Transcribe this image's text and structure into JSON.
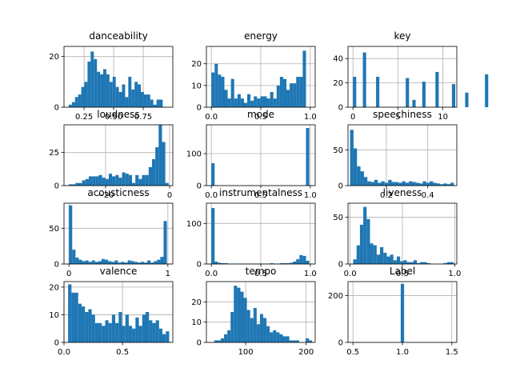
{
  "colors": {
    "bar": "#1f77b4",
    "grid": "#b0b0b0",
    "axis": "#000000"
  },
  "chart_data": [
    {
      "type": "bar",
      "title": "danceability",
      "grid": true,
      "xlim": [
        0.08,
        1.0
      ],
      "ylim": [
        0,
        24
      ],
      "xticks": [
        {
          "v": 0.25,
          "label": "0.25"
        },
        {
          "v": 0.5,
          "label": "0.50"
        },
        {
          "v": 0.75,
          "label": "0.75"
        }
      ],
      "yticks": [
        {
          "v": 0,
          "label": "0"
        },
        {
          "v": 20,
          "label": "20"
        }
      ],
      "bins_start": 0.12,
      "bin_width": 0.0265,
      "values": [
        1,
        2,
        4,
        5,
        8,
        10,
        18,
        22,
        19,
        14,
        13,
        15,
        13,
        10,
        12,
        8,
        6,
        9,
        4,
        12,
        7,
        10,
        9,
        6,
        5,
        5,
        3,
        1,
        3,
        3
      ]
    },
    {
      "type": "bar",
      "title": "energy",
      "grid": true,
      "xlim": [
        -0.05,
        1.05
      ],
      "ylim": [
        0,
        28
      ],
      "xticks": [
        {
          "v": 0,
          "label": "0.0"
        },
        {
          "v": 0.5,
          "label": "0.5"
        },
        {
          "v": 1,
          "label": "1.0"
        }
      ],
      "yticks": [
        {
          "v": 0,
          "label": "0"
        },
        {
          "v": 10,
          "label": "10"
        },
        {
          "v": 20,
          "label": "20"
        }
      ],
      "bins_start": 0.0,
      "bin_width": 0.033,
      "values": [
        16,
        20,
        15,
        14,
        8,
        4,
        13,
        4,
        6,
        4,
        2,
        6,
        3,
        5,
        4,
        5,
        5,
        4,
        7,
        4,
        10,
        14,
        13,
        8,
        11,
        11,
        14,
        14,
        26,
        0
      ]
    },
    {
      "type": "bar",
      "title": "key",
      "grid": true,
      "xlim": [
        -0.55,
        11.55
      ],
      "ylim": [
        0,
        50
      ],
      "xticks": [
        {
          "v": 0,
          "label": "0"
        },
        {
          "v": 5,
          "label": "5"
        },
        {
          "v": 10,
          "label": "10"
        }
      ],
      "yticks": [
        {
          "v": 0,
          "label": "0"
        },
        {
          "v": 20,
          "label": "20"
        },
        {
          "v": 40,
          "label": "40"
        }
      ],
      "bins_start": 0.0,
      "bin_width": 0.367,
      "values": [
        25,
        0,
        0,
        45,
        0,
        0,
        0,
        25,
        0,
        0,
        0,
        0,
        0,
        0,
        0,
        0,
        24,
        0,
        6,
        0,
        0,
        21,
        0,
        0,
        0,
        29,
        0,
        0,
        0,
        0,
        19,
        0,
        0,
        0,
        12,
        0,
        0,
        0,
        0,
        0,
        27
      ]
    },
    {
      "type": "bar",
      "title": "loudness",
      "grid": true,
      "xlim": [
        -33,
        1
      ],
      "ylim": [
        0,
        46
      ],
      "xticks": [
        {
          "v": -20,
          "label": "−20"
        },
        {
          "v": 0,
          "label": "0"
        }
      ],
      "yticks": [
        {
          "v": 0,
          "label": "0"
        },
        {
          "v": 25,
          "label": "25"
        }
      ],
      "bins_start": -31.5,
      "bin_width": 1.04,
      "values": [
        1,
        1,
        2,
        2,
        4,
        5,
        7,
        7,
        7,
        8,
        6,
        5,
        9,
        7,
        8,
        6,
        10,
        9,
        8,
        2,
        8,
        5,
        8,
        8,
        14,
        20,
        29,
        46,
        33,
        2
      ]
    },
    {
      "type": "bar",
      "title": "mode",
      "grid": true,
      "xlim": [
        -0.05,
        1.05
      ],
      "ylim": [
        0,
        190
      ],
      "xticks": [
        {
          "v": 0,
          "label": "0.0"
        },
        {
          "v": 0.5,
          "label": "0.5"
        },
        {
          "v": 1,
          "label": "1.0"
        }
      ],
      "yticks": [
        {
          "v": 0,
          "label": "0"
        },
        {
          "v": 100,
          "label": "100"
        }
      ],
      "bins_start": 0.0,
      "bin_width": 0.033,
      "values": [
        70,
        0,
        0,
        0,
        0,
        0,
        0,
        0,
        0,
        0,
        0,
        0,
        0,
        0,
        0,
        0,
        0,
        0,
        0,
        0,
        0,
        0,
        0,
        0,
        0,
        0,
        0,
        0,
        0,
        180
      ]
    },
    {
      "type": "bar",
      "title": "speechiness",
      "grid": true,
      "xlim": [
        0.015,
        0.54
      ],
      "ylim": [
        0,
        85
      ],
      "xticks": [
        {
          "v": 0.2,
          "label": "0.2"
        },
        {
          "v": 0.4,
          "label": "0.4"
        }
      ],
      "yticks": [
        {
          "v": 0,
          "label": "0"
        },
        {
          "v": 50,
          "label": "50"
        }
      ],
      "bins_start": 0.025,
      "bin_width": 0.0167,
      "values": [
        78,
        52,
        27,
        20,
        12,
        6,
        5,
        8,
        4,
        6,
        4,
        8,
        5,
        5,
        4,
        6,
        4,
        6,
        5,
        4,
        3,
        6,
        4,
        6,
        4,
        3,
        2,
        3,
        2,
        4
      ]
    },
    {
      "type": "bar",
      "title": "acousticness",
      "grid": true,
      "xlim": [
        -0.05,
        1.05
      ],
      "ylim": [
        0,
        85
      ],
      "xticks": [
        {
          "v": 0,
          "label": "0"
        },
        {
          "v": 1,
          "label": "1"
        }
      ],
      "yticks": [
        {
          "v": 0,
          "label": "0"
        },
        {
          "v": 50,
          "label": "50"
        }
      ],
      "bins_start": 0.0,
      "bin_width": 0.033,
      "values": [
        82,
        20,
        9,
        6,
        4,
        5,
        3,
        5,
        3,
        4,
        7,
        6,
        4,
        3,
        5,
        2,
        3,
        2,
        5,
        4,
        3,
        2,
        3,
        2,
        5,
        2,
        4,
        6,
        10,
        60
      ]
    },
    {
      "type": "bar",
      "title": "instrumentalness",
      "grid": true,
      "xlim": [
        -0.05,
        1.05
      ],
      "ylim": [
        0,
        150
      ],
      "xticks": [
        {
          "v": 0,
          "label": "0.0"
        },
        {
          "v": 0.5,
          "label": "0.5"
        },
        {
          "v": 1,
          "label": "1.0"
        }
      ],
      "yticks": [
        {
          "v": 0,
          "label": "0"
        },
        {
          "v": 100,
          "label": "100"
        }
      ],
      "bins_start": 0.0,
      "bin_width": 0.033,
      "values": [
        138,
        6,
        3,
        2,
        2,
        1,
        1,
        1,
        1,
        1,
        1,
        1,
        1,
        1,
        1,
        1,
        1,
        1,
        2,
        1,
        1,
        2,
        2,
        2,
        3,
        6,
        12,
        22,
        20,
        8
      ]
    },
    {
      "type": "bar",
      "title": "liveness",
      "grid": true,
      "xlim": [
        -0.02,
        1.02
      ],
      "ylim": [
        0,
        65
      ],
      "xticks": [
        {
          "v": 0,
          "label": "0.0"
        },
        {
          "v": 0.5,
          "label": "0.5"
        },
        {
          "v": 1,
          "label": "1.0"
        }
      ],
      "yticks": [
        {
          "v": 0,
          "label": "0"
        },
        {
          "v": 50,
          "label": "50"
        }
      ],
      "bins_start": 0.03,
      "bin_width": 0.032,
      "values": [
        5,
        20,
        42,
        61,
        48,
        22,
        20,
        10,
        18,
        12,
        8,
        10,
        4,
        8,
        3,
        4,
        2,
        2,
        4,
        1,
        2,
        2,
        1,
        0,
        0,
        0,
        0,
        1,
        2,
        2
      ]
    },
    {
      "type": "bar",
      "title": "valence",
      "grid": true,
      "xlim": [
        0.0,
        0.93
      ],
      "ylim": [
        0,
        22
      ],
      "xticks": [
        {
          "v": 0,
          "label": "0.0"
        },
        {
          "v": 0.5,
          "label": "0.5"
        }
      ],
      "yticks": [
        {
          "v": 0,
          "label": "0"
        },
        {
          "v": 10,
          "label": "10"
        },
        {
          "v": 20,
          "label": "20"
        }
      ],
      "bins_start": 0.035,
      "bin_width": 0.0288,
      "values": [
        21,
        18,
        18,
        14,
        13,
        11,
        12,
        10,
        7,
        7,
        6,
        8,
        7,
        10,
        7,
        11,
        6,
        10,
        6,
        5,
        9,
        6,
        10,
        11,
        8,
        7,
        8,
        5,
        3,
        4
      ]
    },
    {
      "type": "bar",
      "title": "tempo",
      "grid": true,
      "xlim": [
        35,
        215
      ],
      "ylim": [
        0,
        30
      ],
      "xticks": [
        {
          "v": 100,
          "label": "100"
        },
        {
          "v": 200,
          "label": "200"
        }
      ],
      "yticks": [
        {
          "v": 0,
          "label": "0"
        },
        {
          "v": 10,
          "label": "10"
        },
        {
          "v": 20,
          "label": "20"
        }
      ],
      "bins_start": 48,
      "bin_width": 5.4,
      "values": [
        1,
        1,
        2,
        4,
        6,
        15,
        28,
        27,
        25,
        22,
        16,
        12,
        17,
        9,
        14,
        12,
        8,
        5,
        6,
        5,
        4,
        3,
        3,
        1,
        1,
        1,
        0,
        0,
        2,
        1
      ]
    },
    {
      "type": "bar",
      "title": "Label",
      "grid": true,
      "xlim": [
        0.45,
        1.55
      ],
      "ylim": [
        0,
        260
      ],
      "xticks": [
        {
          "v": 0.5,
          "label": "0.5"
        },
        {
          "v": 1.0,
          "label": "1.0"
        },
        {
          "v": 1.5,
          "label": "1.5"
        }
      ],
      "yticks": [
        {
          "v": 0,
          "label": "0"
        },
        {
          "v": 200,
          "label": "200"
        }
      ],
      "bins_start": 0.983,
      "bin_width": 0.034,
      "values": [
        250
      ]
    }
  ]
}
